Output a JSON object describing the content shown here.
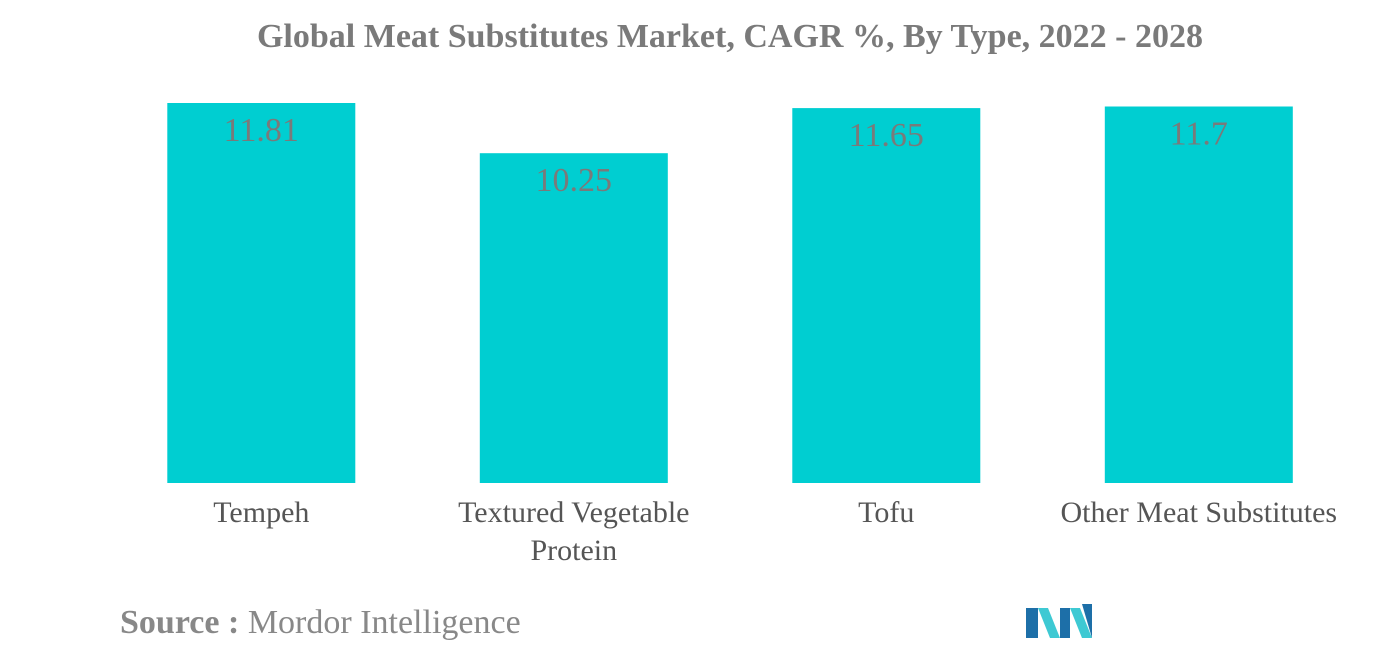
{
  "title": "Global Meat Substitutes Market, CAGR %, By Type, 2022 - 2028",
  "source": {
    "label": "Source :",
    "value": "Mordor Intelligence"
  },
  "colors": {
    "bar": "#00CED1",
    "logo_dark": "#1d6fa8",
    "logo_light": "#3ec9d3"
  },
  "chart_data": {
    "type": "bar",
    "title": "Global Meat Substitutes Market, CAGR %, By Type, 2022 - 2028",
    "categories": [
      "Tempeh",
      "Textured Vegetable Protein",
      "Tofu",
      "Other Meat Substitutes"
    ],
    "category_lines": [
      [
        "Tempeh"
      ],
      [
        "Textured Vegetable",
        "Protein"
      ],
      [
        "Tofu"
      ],
      [
        "Other Meat Substitutes"
      ]
    ],
    "values": [
      11.81,
      10.25,
      11.65,
      11.7
    ],
    "value_labels": [
      "11.81",
      "10.25",
      "11.65",
      "11.7"
    ],
    "xlabel": "",
    "ylabel": "",
    "ylim": [
      0,
      11.81
    ],
    "grid": false,
    "legend": "none",
    "data_labels": "inside-top"
  }
}
